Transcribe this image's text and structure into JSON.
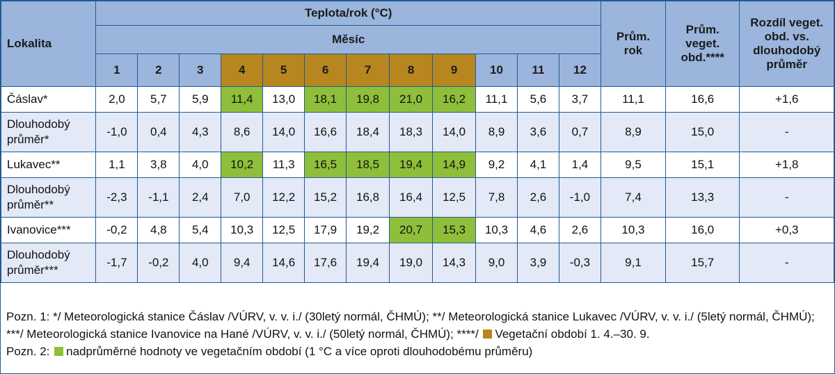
{
  "header": {
    "lokalita": "Lokalita",
    "title": "Teplota/rok (°C)",
    "subtitle": "Měsíc",
    "months": [
      "1",
      "2",
      "3",
      "4",
      "5",
      "6",
      "7",
      "8",
      "9",
      "10",
      "11",
      "12"
    ],
    "prum_rok_line1": "Prům.",
    "prum_rok_line2": "rok",
    "prum_veg_line1": "Prům.",
    "prum_veg_line2": "veget.",
    "prum_veg_line3": "obd.****",
    "rozdil_line1": "Rozdíl veget.",
    "rozdil_line2": "obd. vs.",
    "rozdil_line3": "dlouhodobý",
    "rozdil_line4": "průměr"
  },
  "colors": {
    "header_bg": "#9bb5dc",
    "vegetation_month_bg": "#b7861e",
    "above_average_bg": "#8fbf3a",
    "alt_row_bg": "#e3e9f6",
    "border": "#1f5a93"
  },
  "rows": [
    {
      "label": "Čáslav*",
      "values": [
        "2,0",
        "5,7",
        "5,9",
        "11,4",
        "13,0",
        "18,1",
        "19,8",
        "21,0",
        "16,2",
        "11,1",
        "5,6",
        "3,7"
      ],
      "prum_rok": "11,1",
      "prum_veg": "16,6",
      "rozdil": "+1,6"
    },
    {
      "label_line1": "Dlouhodobý",
      "label_line2": "průměr*",
      "values": [
        "-1,0",
        "0,4",
        "4,3",
        "8,6",
        "14,0",
        "16,6",
        "18,4",
        "18,3",
        "14,0",
        "8,9",
        "3,6",
        "0,7"
      ],
      "prum_rok": "8,9",
      "prum_veg": "15,0",
      "rozdil": "-"
    },
    {
      "label": "Lukavec**",
      "values": [
        "1,1",
        "3,8",
        "4,0",
        "10,2",
        "11,3",
        "16,5",
        "18,5",
        "19,4",
        "14,9",
        "9,2",
        "4,1",
        "1,4"
      ],
      "prum_rok": "9,5",
      "prum_veg": "15,1",
      "rozdil": "+1,8"
    },
    {
      "label_line1": "Dlouhodobý",
      "label_line2": "průměr**",
      "values": [
        "-2,3",
        "-1,1",
        "2,4",
        "7,0",
        "12,2",
        "15,2",
        "16,8",
        "16,4",
        "12,5",
        "7,8",
        "2,6",
        "-1,0"
      ],
      "prum_rok": "7,4",
      "prum_veg": "13,3",
      "rozdil": "-"
    },
    {
      "label": "Ivanovice***",
      "values": [
        "-0,2",
        "4,8",
        "5,4",
        "10,3",
        "12,5",
        "17,9",
        "19,2",
        "20,7",
        "15,3",
        "10,3",
        "4,6",
        "2,6"
      ],
      "prum_rok": "10,3",
      "prum_veg": "16,0",
      "rozdil": "+0,3"
    },
    {
      "label_line1": "Dlouhodobý",
      "label_line2": "průměr***",
      "values": [
        "-1,7",
        "-0,2",
        "4,0",
        "9,4",
        "14,6",
        "17,6",
        "19,4",
        "19,0",
        "14,3",
        "9,0",
        "3,9",
        "-0,3"
      ],
      "prum_rok": "9,1",
      "prum_veg": "15,7",
      "rozdil": "-"
    }
  ],
  "notes": {
    "note1_text": "Pozn. 1: */ Meteorologická stanice Čáslav /VÚRV, v. v. i./ (30letý normál, ČHMÚ); **/ Meteorologická stanice Lukavec /VÚRV, v. v. i./ (5letý normál, ČHMÚ); ***/ Meteorologická stanice Ivanovice na Hané /VÚRV, v. v. i./ (50letý normál, ČHMÚ); ****/",
    "note1_legend": "Vegetační období 1. 4.–30. 9.",
    "note2_prefix": "Pozn. 2:",
    "note2_legend": "nadprůměrné hodnoty ve vegetačním období (1 °C a více oproti dlouhodobému průměru)"
  }
}
